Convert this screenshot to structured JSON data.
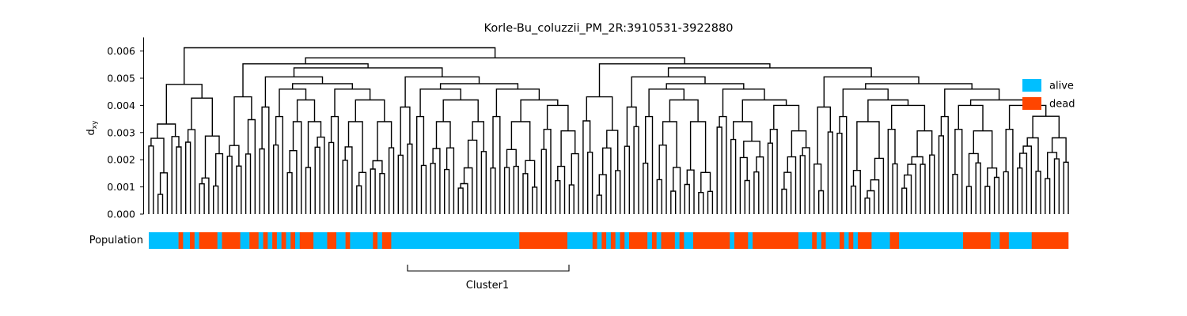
{
  "chart_data": {
    "type": "dendrogram",
    "title": "Korle-Bu_coluzzii_PM_2R:3910531-3922880",
    "ylabel": "d",
    "ylabel_subscript": "xy",
    "ylim": [
      0,
      0.0065
    ],
    "yticks": [
      0,
      0.001,
      0.002,
      0.003,
      0.004,
      0.005,
      0.006
    ],
    "ytick_labels": [
      "0.000",
      "0.001",
      "0.002",
      "0.003",
      "0.004",
      "0.005",
      "0.006"
    ],
    "n_leaves": 200,
    "root_height": 0.00612,
    "major_merge_heights": [
      0.00612,
      0.00575,
      0.00553,
      0.00538,
      0.00505,
      0.0048,
      0.0046,
      0.0042,
      0.004,
      0.0036,
      0.0033
    ],
    "population_row_label": "Population",
    "population_bar": {
      "colors": {
        "alive": "#00bfff",
        "dead": "#ff4500"
      },
      "segments": [
        [
          "alive",
          6.5
        ],
        [
          "dead",
          1
        ],
        [
          "alive",
          1.5
        ],
        [
          "dead",
          1
        ],
        [
          "alive",
          1
        ],
        [
          "dead",
          4
        ],
        [
          "alive",
          1
        ],
        [
          "dead",
          4
        ],
        [
          "alive",
          2
        ],
        [
          "dead",
          2
        ],
        [
          "alive",
          1
        ],
        [
          "dead",
          1
        ],
        [
          "alive",
          1
        ],
        [
          "dead",
          1
        ],
        [
          "alive",
          1
        ],
        [
          "dead",
          1
        ],
        [
          "alive",
          1
        ],
        [
          "dead",
          1
        ],
        [
          "alive",
          1
        ],
        [
          "dead",
          3
        ],
        [
          "alive",
          3
        ],
        [
          "dead",
          2
        ],
        [
          "alive",
          2
        ],
        [
          "dead",
          1
        ],
        [
          "alive",
          5
        ],
        [
          "dead",
          1
        ],
        [
          "alive",
          1
        ],
        [
          "dead",
          2
        ],
        [
          "alive",
          28
        ],
        [
          "dead",
          10.5
        ],
        [
          "alive",
          5.5
        ],
        [
          "dead",
          1
        ],
        [
          "alive",
          1
        ],
        [
          "dead",
          1
        ],
        [
          "alive",
          1
        ],
        [
          "dead",
          1
        ],
        [
          "alive",
          1
        ],
        [
          "dead",
          1
        ],
        [
          "alive",
          1
        ],
        [
          "dead",
          4
        ],
        [
          "alive",
          1
        ],
        [
          "dead",
          1
        ],
        [
          "alive",
          1
        ],
        [
          "dead",
          3
        ],
        [
          "alive",
          1
        ],
        [
          "dead",
          1
        ],
        [
          "alive",
          2
        ],
        [
          "dead",
          8
        ],
        [
          "alive",
          1
        ],
        [
          "dead",
          3
        ],
        [
          "alive",
          1
        ],
        [
          "dead",
          10
        ],
        [
          "alive",
          3
        ],
        [
          "dead",
          1
        ],
        [
          "alive",
          1
        ],
        [
          "dead",
          1
        ],
        [
          "alive",
          3
        ],
        [
          "dead",
          1
        ],
        [
          "alive",
          1
        ],
        [
          "dead",
          1
        ],
        [
          "alive",
          1
        ],
        [
          "dead",
          3
        ],
        [
          "alive",
          4
        ],
        [
          "dead",
          2
        ],
        [
          "alive",
          14
        ],
        [
          "dead",
          6
        ],
        [
          "alive",
          2
        ],
        [
          "dead",
          2
        ],
        [
          "alive",
          5
        ],
        [
          "dead",
          8
        ]
      ]
    },
    "cluster_label": "Cluster1",
    "legend": [
      {
        "label": "alive",
        "color": "#00bfff"
      },
      {
        "label": "dead",
        "color": "#ff4500"
      }
    ],
    "legend_position": "right"
  }
}
